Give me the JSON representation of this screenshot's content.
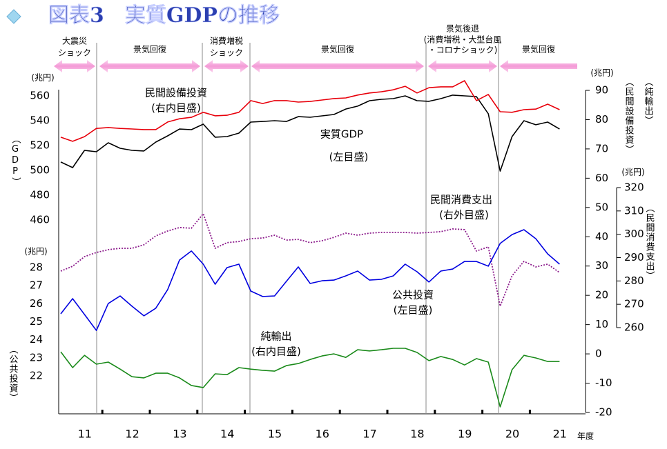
{
  "chart_data": {
    "type": "line",
    "title": "図表3　実質GDPの推移",
    "x_label": "年度",
    "categories": [
      null,
      "11",
      null,
      null,
      null,
      "12",
      null,
      null,
      null,
      "13",
      null,
      null,
      null,
      "14",
      null,
      null,
      null,
      "15",
      null,
      null,
      null,
      "16",
      null,
      null,
      null,
      "17",
      null,
      null,
      null,
      "18",
      null,
      null,
      null,
      "19",
      null,
      null,
      null,
      "20",
      null,
      null,
      null,
      "21",
      null
    ],
    "periods": [
      {
        "lines": [
          "大震災",
          "ショック"
        ]
      },
      {
        "lines": [
          "景気回復"
        ]
      },
      {
        "lines": [
          "消費増税",
          "ショック"
        ]
      },
      {
        "lines": [
          "景気回復"
        ]
      },
      {
        "lines": [
          "景気後退",
          "(消費増税・大型台風",
          "・コロナショック)"
        ]
      },
      {
        "lines": [
          "景気回復"
        ]
      }
    ],
    "ylim": [
      460,
      560
    ],
    "yticks": [
      460,
      480,
      500,
      520,
      540,
      560
    ],
    "yunit": "(兆円)",
    "ytitle": "（GDP）",
    "y4lim": [
      22,
      28
    ],
    "y4ticks": [
      22,
      23,
      24,
      25,
      26,
      27,
      28
    ],
    "y4unit": "(兆円)",
    "y4title": "（公共投資）",
    "y2lim": [
      -20,
      90
    ],
    "y2ticks": [
      -20,
      -10,
      0,
      10,
      20,
      30,
      40,
      50,
      60,
      70,
      80,
      90
    ],
    "y2unit": "(兆円)",
    "y2titles": [
      "（純輸出）",
      "（民間設備投資）"
    ],
    "y3lim": [
      260,
      320
    ],
    "y3ticks": [
      260,
      270,
      280,
      290,
      300,
      310,
      320
    ],
    "y3unit": "(兆円)",
    "y3title": "（民間消費支出）",
    "series": [
      {
        "name": "実質GDP",
        "note": "(左目盛)",
        "color": "#000000",
        "axis": "y",
        "values": [
          506.7,
          502.2,
          516.1,
          515.0,
          522.2,
          517.8,
          516.1,
          515.6,
          522.8,
          527.8,
          533.3,
          532.8,
          537.2,
          526.7,
          527.2,
          530.0,
          538.9,
          539.4,
          540.0,
          539.4,
          543.3,
          542.8,
          543.9,
          545.0,
          549.4,
          551.7,
          556.1,
          557.2,
          557.8,
          560.0,
          556.1,
          555.6,
          557.8,
          560.6,
          560.0,
          559.4,
          545.6,
          499.4,
          527.2,
          540.0,
          536.7,
          538.9,
          533.3
        ]
      },
      {
        "name": "民間設備投資",
        "note": "(右内目盛)",
        "color": "#e8000b",
        "axis": "y2",
        "values": [
          74.0,
          72.6,
          74.2,
          77.0,
          77.3,
          77.0,
          76.8,
          76.6,
          76.6,
          79.2,
          80.3,
          80.8,
          82.5,
          81.3,
          81.5,
          82.5,
          86.5,
          85.5,
          86.5,
          86.5,
          86.0,
          86.2,
          86.7,
          87.2,
          87.4,
          88.4,
          89.1,
          89.5,
          90.2,
          91.4,
          89.1,
          90.9,
          91.2,
          91.2,
          93.3,
          86.5,
          88.6,
          82.7,
          82.5,
          83.4,
          83.6,
          85.3,
          83.4
        ]
      },
      {
        "name": "民間消費支出",
        "note": "(右外目盛)",
        "color": "#8b1a8b",
        "axis": "y3",
        "dash": "dotted",
        "values": [
          284.2,
          286.3,
          290.4,
          292.2,
          293.4,
          294.0,
          294.0,
          295.5,
          299.3,
          301.4,
          302.9,
          302.6,
          308.8,
          294.0,
          296.4,
          296.9,
          298.1,
          298.4,
          299.6,
          297.5,
          297.8,
          296.4,
          297.2,
          298.7,
          300.5,
          299.6,
          300.5,
          300.8,
          300.8,
          300.8,
          300.5,
          300.8,
          301.1,
          302.3,
          302.0,
          292.8,
          294.6,
          269.2,
          282.2,
          288.4,
          286.0,
          287.2,
          283.6
        ]
      },
      {
        "name": "公共投資",
        "note": "(左目盛)",
        "color": "#0000e0",
        "axis": "y4",
        "values": [
          25.44,
          26.28,
          25.4,
          24.52,
          26.01,
          26.43,
          25.86,
          25.33,
          25.75,
          26.78,
          28.42,
          28.92,
          28.19,
          27.08,
          28.0,
          28.19,
          26.7,
          26.4,
          26.43,
          27.24,
          28.04,
          27.12,
          27.27,
          27.31,
          27.54,
          27.81,
          27.31,
          27.35,
          27.54,
          28.19,
          27.77,
          27.2,
          27.81,
          27.92,
          28.34,
          28.34,
          28.08,
          29.34,
          29.83,
          30.1,
          29.6,
          28.76,
          28.19
        ]
      },
      {
        "name": "純輸出",
        "note": "(右内目盛)",
        "color": "#1a8a1a",
        "axis": "y2",
        "values": [
          0.7,
          -4.7,
          -0.5,
          -3.5,
          -2.8,
          -5.2,
          -7.8,
          -8.2,
          -6.6,
          -6.6,
          -8.2,
          -10.8,
          -11.5,
          -6.8,
          -7.1,
          -4.7,
          -5.2,
          -5.6,
          -5.9,
          -4.0,
          -3.3,
          -1.9,
          -0.7,
          0.0,
          -1.2,
          1.4,
          1.0,
          1.4,
          1.9,
          1.9,
          0.5,
          -2.3,
          -0.9,
          -1.9,
          -3.8,
          -1.6,
          -2.8,
          -18.1,
          -5.4,
          -0.5,
          -1.4,
          -2.6,
          -2.6
        ]
      }
    ]
  }
}
